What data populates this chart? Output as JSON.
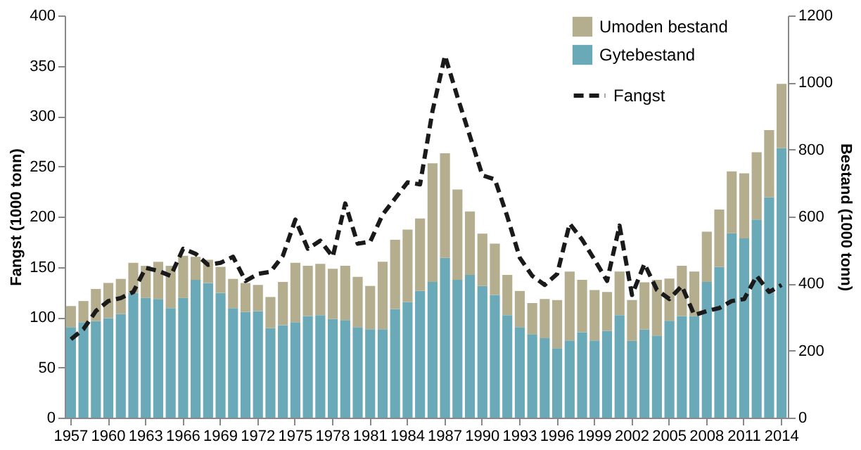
{
  "chart_data": {
    "type": "bar",
    "stacked": true,
    "ylabel": "Fangst (1000 tonn)",
    "y2label": "Bestand (1000 tonn)",
    "categories": [
      "1957",
      null,
      null,
      "1960",
      null,
      null,
      "1963",
      null,
      null,
      "1966",
      null,
      null,
      "1969",
      null,
      null,
      "1972",
      null,
      null,
      "1975",
      null,
      null,
      "1978",
      null,
      null,
      "1981",
      null,
      null,
      "1984",
      null,
      null,
      "1987",
      null,
      null,
      "1990",
      null,
      null,
      "1993",
      null,
      null,
      "1996",
      null,
      null,
      "1999",
      null,
      null,
      "2002",
      null,
      null,
      "2005",
      null,
      null,
      "2008",
      null,
      null,
      "2011",
      null,
      null,
      "2014"
    ],
    "series": [
      {
        "name": "Gytebestand",
        "type": "bar",
        "axis": "y2",
        "color": "#6aa9b8",
        "values": [
          270,
          285,
          288,
          297,
          309,
          372,
          357,
          354,
          327,
          357,
          411,
          402,
          372,
          327,
          315,
          318,
          267,
          276,
          285,
          303,
          306,
          294,
          291,
          270,
          264,
          264,
          324,
          345,
          378,
          405,
          477,
          411,
          426,
          393,
          366,
          306,
          270,
          249,
          237,
          207,
          230,
          255,
          230,
          259,
          306,
          229,
          263,
          245,
          289,
          303,
          303,
          405,
          450,
          550,
          535,
          591,
          657,
          804
        ]
      },
      {
        "name": "Umoden bestand",
        "type": "bar",
        "axis": "y2",
        "color": "#b5ae8e",
        "values": [
          63,
          63,
          96,
          105,
          105,
          90,
          96,
          111,
          126,
          126,
          69,
          69,
          78,
          87,
          87,
          78,
          93,
          129,
          177,
          150,
          153,
          150,
          162,
          150,
          129,
          201,
          207,
          216,
          216,
          354,
          312,
          270,
          189,
          156,
          153,
          120,
          108,
          93,
          117,
          144,
          206,
          156,
          151,
          116,
          130,
          122,
          141,
          166,
          126,
          150,
          133,
          150,
          171,
          185,
          194,
          201,
          201,
          192
        ]
      },
      {
        "name": "Fangst",
        "type": "line",
        "axis": "y",
        "color": "#1a1a1a",
        "line_style": "dashed",
        "marker": "none",
        "values": [
          78,
          88,
          106,
          116,
          119,
          125,
          149,
          146,
          141,
          168,
          163,
          152,
          154,
          160,
          136,
          143,
          145,
          161,
          197,
          168,
          176,
          160,
          213,
          173,
          175,
          202,
          218,
          234,
          232,
          305,
          360,
          319,
          280,
          241,
          237,
          200,
          159,
          141,
          132,
          143,
          193,
          177,
          157,
          136,
          191,
          122,
          153,
          127,
          118,
          131,
          102,
          106,
          109,
          116,
          118,
          141,
          125,
          132
        ]
      }
    ],
    "ylim": [
      0,
      400
    ],
    "yticks": [
      0,
      50,
      100,
      150,
      200,
      250,
      300,
      350,
      400
    ],
    "y2lim": [
      0,
      1200
    ],
    "y2ticks": [
      0,
      200,
      400,
      600,
      800,
      1000,
      1200
    ],
    "grid": false,
    "legend": "top right"
  }
}
